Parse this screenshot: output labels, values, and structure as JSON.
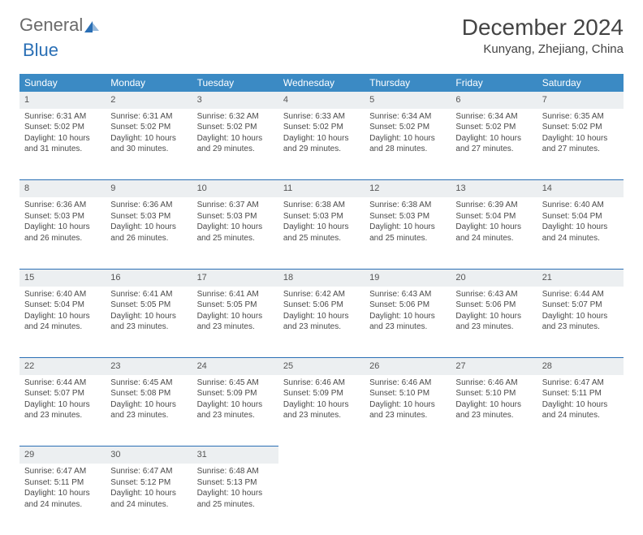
{
  "logo": {
    "part1": "General",
    "part2": "Blue"
  },
  "title": "December 2024",
  "location": "Kunyang, Zhejiang, China",
  "colors": {
    "header_bg": "#3b8ac4",
    "header_text": "#ffffff",
    "daynum_bg": "#eceff1",
    "rule": "#2a6fb5",
    "text": "#4a4a4a",
    "page_bg": "#ffffff"
  },
  "fonts": {
    "title_size_pt": 21,
    "location_size_pt": 11,
    "weekday_size_pt": 9,
    "daynum_size_pt": 8.5,
    "cell_size_pt": 7.5
  },
  "weekdays": [
    "Sunday",
    "Monday",
    "Tuesday",
    "Wednesday",
    "Thursday",
    "Friday",
    "Saturday"
  ],
  "weeks": [
    [
      {
        "n": "1",
        "sr": "6:31 AM",
        "ss": "5:02 PM",
        "dl": "10 hours and 31 minutes."
      },
      {
        "n": "2",
        "sr": "6:31 AM",
        "ss": "5:02 PM",
        "dl": "10 hours and 30 minutes."
      },
      {
        "n": "3",
        "sr": "6:32 AM",
        "ss": "5:02 PM",
        "dl": "10 hours and 29 minutes."
      },
      {
        "n": "4",
        "sr": "6:33 AM",
        "ss": "5:02 PM",
        "dl": "10 hours and 29 minutes."
      },
      {
        "n": "5",
        "sr": "6:34 AM",
        "ss": "5:02 PM",
        "dl": "10 hours and 28 minutes."
      },
      {
        "n": "6",
        "sr": "6:34 AM",
        "ss": "5:02 PM",
        "dl": "10 hours and 27 minutes."
      },
      {
        "n": "7",
        "sr": "6:35 AM",
        "ss": "5:02 PM",
        "dl": "10 hours and 27 minutes."
      }
    ],
    [
      {
        "n": "8",
        "sr": "6:36 AM",
        "ss": "5:03 PM",
        "dl": "10 hours and 26 minutes."
      },
      {
        "n": "9",
        "sr": "6:36 AM",
        "ss": "5:03 PM",
        "dl": "10 hours and 26 minutes."
      },
      {
        "n": "10",
        "sr": "6:37 AM",
        "ss": "5:03 PM",
        "dl": "10 hours and 25 minutes."
      },
      {
        "n": "11",
        "sr": "6:38 AM",
        "ss": "5:03 PM",
        "dl": "10 hours and 25 minutes."
      },
      {
        "n": "12",
        "sr": "6:38 AM",
        "ss": "5:03 PM",
        "dl": "10 hours and 25 minutes."
      },
      {
        "n": "13",
        "sr": "6:39 AM",
        "ss": "5:04 PM",
        "dl": "10 hours and 24 minutes."
      },
      {
        "n": "14",
        "sr": "6:40 AM",
        "ss": "5:04 PM",
        "dl": "10 hours and 24 minutes."
      }
    ],
    [
      {
        "n": "15",
        "sr": "6:40 AM",
        "ss": "5:04 PM",
        "dl": "10 hours and 24 minutes."
      },
      {
        "n": "16",
        "sr": "6:41 AM",
        "ss": "5:05 PM",
        "dl": "10 hours and 23 minutes."
      },
      {
        "n": "17",
        "sr": "6:41 AM",
        "ss": "5:05 PM",
        "dl": "10 hours and 23 minutes."
      },
      {
        "n": "18",
        "sr": "6:42 AM",
        "ss": "5:06 PM",
        "dl": "10 hours and 23 minutes."
      },
      {
        "n": "19",
        "sr": "6:43 AM",
        "ss": "5:06 PM",
        "dl": "10 hours and 23 minutes."
      },
      {
        "n": "20",
        "sr": "6:43 AM",
        "ss": "5:06 PM",
        "dl": "10 hours and 23 minutes."
      },
      {
        "n": "21",
        "sr": "6:44 AM",
        "ss": "5:07 PM",
        "dl": "10 hours and 23 minutes."
      }
    ],
    [
      {
        "n": "22",
        "sr": "6:44 AM",
        "ss": "5:07 PM",
        "dl": "10 hours and 23 minutes."
      },
      {
        "n": "23",
        "sr": "6:45 AM",
        "ss": "5:08 PM",
        "dl": "10 hours and 23 minutes."
      },
      {
        "n": "24",
        "sr": "6:45 AM",
        "ss": "5:09 PM",
        "dl": "10 hours and 23 minutes."
      },
      {
        "n": "25",
        "sr": "6:46 AM",
        "ss": "5:09 PM",
        "dl": "10 hours and 23 minutes."
      },
      {
        "n": "26",
        "sr": "6:46 AM",
        "ss": "5:10 PM",
        "dl": "10 hours and 23 minutes."
      },
      {
        "n": "27",
        "sr": "6:46 AM",
        "ss": "5:10 PM",
        "dl": "10 hours and 23 minutes."
      },
      {
        "n": "28",
        "sr": "6:47 AM",
        "ss": "5:11 PM",
        "dl": "10 hours and 24 minutes."
      }
    ],
    [
      {
        "n": "29",
        "sr": "6:47 AM",
        "ss": "5:11 PM",
        "dl": "10 hours and 24 minutes."
      },
      {
        "n": "30",
        "sr": "6:47 AM",
        "ss": "5:12 PM",
        "dl": "10 hours and 24 minutes."
      },
      {
        "n": "31",
        "sr": "6:48 AM",
        "ss": "5:13 PM",
        "dl": "10 hours and 25 minutes."
      },
      null,
      null,
      null,
      null
    ]
  ],
  "labels": {
    "sunrise_prefix": "Sunrise: ",
    "sunset_prefix": "Sunset: ",
    "daylight_prefix": "Daylight: "
  }
}
